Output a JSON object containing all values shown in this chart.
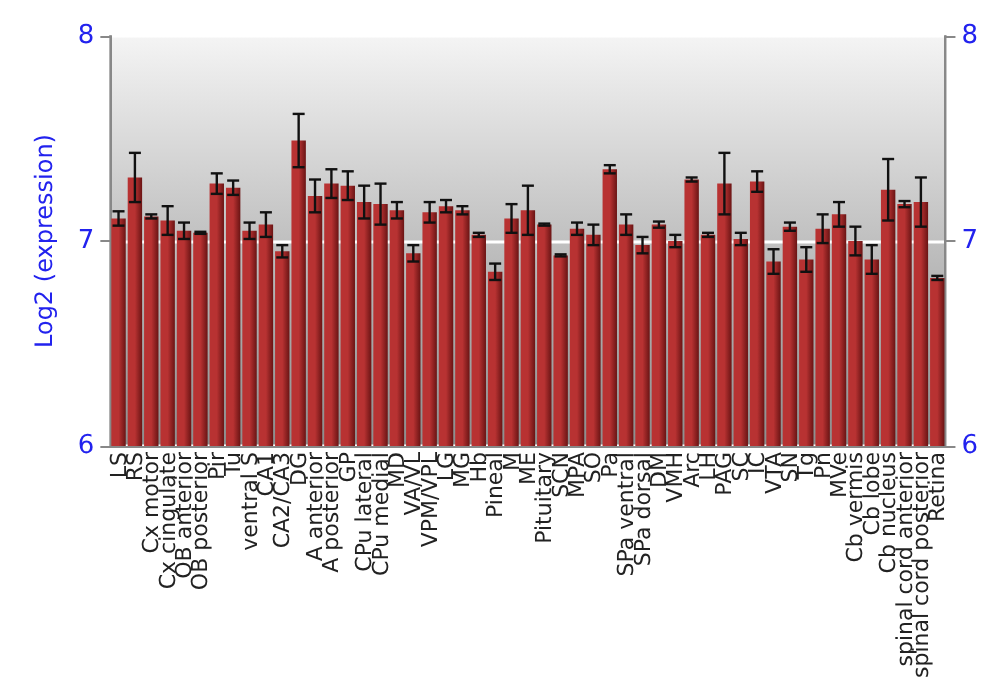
{
  "chart_data": {
    "type": "bar",
    "ylabel": "Log2 (expression)",
    "categories": [
      "LS",
      "RS",
      "Cx motor",
      "Cx cingulate",
      "OB anterior",
      "OB posterior",
      "Pir",
      "Tu",
      "ventral S",
      "CA1",
      "CA2/CA3",
      "DG",
      "A anterior",
      "A posterior",
      "GP",
      "CPu lateral",
      "CPu medial",
      "MD",
      "VA/VL",
      "VPM/VPL",
      "LG",
      "MG",
      "Hb",
      "Pineal",
      "M",
      "ME",
      "Pituitary",
      "SCN",
      "MPA",
      "SO",
      "Pa",
      "SPa ventral",
      "SPa dorsal",
      "DM",
      "VMH",
      "Arc",
      "LH",
      "PAG",
      "SC",
      "IC",
      "VTA",
      "SN",
      "Tg",
      "Pn",
      "MVe",
      "Cb vermis",
      "Cb lobe",
      "Cb nucleus",
      "spinal cord anterior",
      "spinal cord posterior",
      "Retina"
    ],
    "values": [
      7.11,
      7.31,
      7.12,
      7.1,
      7.05,
      7.04,
      7.28,
      7.26,
      7.05,
      7.08,
      6.95,
      7.49,
      7.22,
      7.28,
      7.27,
      7.19,
      7.18,
      7.15,
      6.94,
      7.14,
      7.17,
      7.15,
      7.03,
      6.85,
      7.11,
      7.15,
      7.08,
      6.93,
      7.06,
      7.03,
      7.35,
      7.08,
      6.98,
      7.08,
      7.0,
      7.3,
      7.03,
      7.28,
      7.01,
      7.29,
      6.9,
      7.07,
      6.91,
      7.06,
      7.13,
      7.0,
      6.91,
      7.25,
      7.18,
      7.19,
      6.82
    ],
    "errors": [
      0.035,
      0.12,
      0.01,
      0.07,
      0.04,
      0.005,
      0.05,
      0.035,
      0.04,
      0.06,
      0.03,
      0.13,
      0.08,
      0.07,
      0.07,
      0.08,
      0.1,
      0.04,
      0.04,
      0.05,
      0.03,
      0.02,
      0.01,
      0.04,
      0.07,
      0.12,
      0.005,
      0.005,
      0.03,
      0.05,
      0.02,
      0.05,
      0.04,
      0.015,
      0.03,
      0.01,
      0.01,
      0.15,
      0.03,
      0.05,
      0.06,
      0.02,
      0.06,
      0.07,
      0.06,
      0.07,
      0.07,
      0.15,
      0.015,
      0.12,
      0.01
    ],
    "color": "#b83232",
    "ylim": [
      6,
      8
    ],
    "yticks": [
      6,
      7,
      8
    ],
    "y2lim": [
      6,
      8
    ],
    "y2ticks": [
      6,
      7,
      8
    ],
    "grid": "y"
  }
}
